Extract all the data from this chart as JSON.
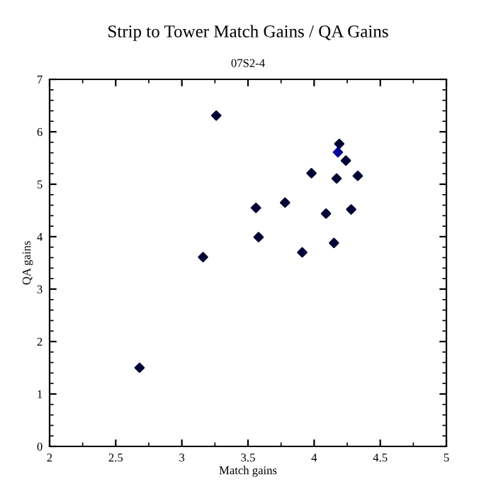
{
  "chart_data": {
    "type": "scatter",
    "title": "Strip to Tower Match Gains / QA Gains",
    "subtitle": "07S2-4",
    "xlabel": "Match gains",
    "ylabel": "QA gains",
    "x": [
      2.68,
      3.16,
      3.26,
      3.56,
      3.58,
      3.78,
      3.91,
      3.98,
      4.09,
      4.15,
      4.17,
      4.19,
      4.18,
      4.24,
      4.28,
      4.33
    ],
    "values": [
      1.5,
      3.61,
      6.31,
      4.55,
      3.99,
      4.65,
      3.7,
      5.21,
      4.44,
      3.88,
      5.11,
      5.77,
      5.61,
      5.45,
      4.52,
      5.16
    ],
    "colors": [
      "#000033",
      "#000033",
      "#000033",
      "#000033",
      "#000033",
      "#000033",
      "#000033",
      "#000033",
      "#000033",
      "#000033",
      "#000033",
      "#000033",
      "#000099",
      "#000033",
      "#000033",
      "#000033"
    ],
    "marker": "diamond",
    "xlim": [
      2,
      5
    ],
    "ylim": [
      0,
      7
    ],
    "xticks": [
      2,
      2.5,
      3,
      3.5,
      4,
      4.5,
      5
    ],
    "yticks": [
      0,
      1,
      2,
      3,
      4,
      5,
      6,
      7
    ],
    "grid": false
  }
}
